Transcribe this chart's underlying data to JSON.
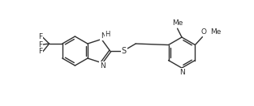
{
  "figsize": [
    3.13,
    1.31
  ],
  "dpi": 100,
  "bg": "#ffffff",
  "lc": "#303030",
  "lw": 1.0,
  "fs": 6.5,
  "xlim": [
    0,
    313
  ],
  "ylim": [
    0,
    131
  ]
}
